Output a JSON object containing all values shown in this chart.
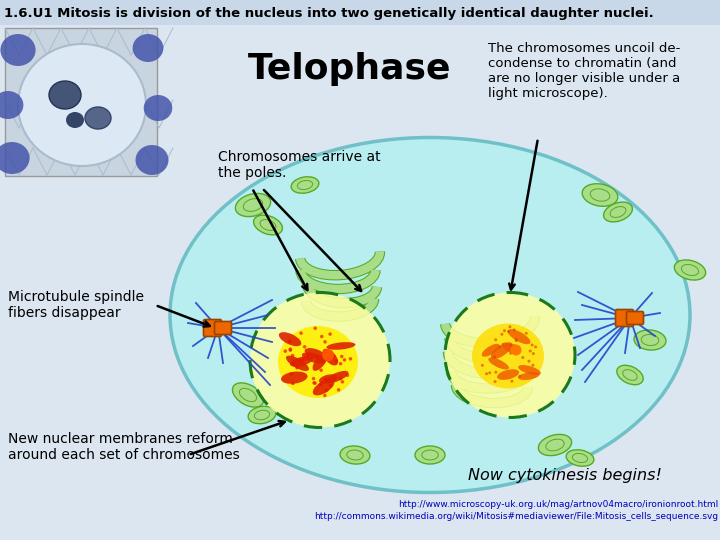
{
  "title": "1.6.U1 Mitosis is division of the nucleus into two genetically identical daughter nuclei.",
  "title_bg": "#c8d8e8",
  "main_bg": "#dce6f1",
  "stage_label": "Telophase",
  "label1_text": "Chromosomes arrive at\nthe poles.",
  "label2_text": "The chromosomes uncoil de-\ncondense to chromatin (and\nare no longer visible under a\nlight microscope).",
  "label3_text": "Microtubule spindle\nfibers disappear",
  "label4_text": "New nuclear membranes reform\naround each set of chromosomes",
  "label5_text": "Now cytokinesis begins!",
  "url1": "http://www.microscopy-uk.org.uk/mag/artnov04macro/ironionroot.html",
  "url2": "http://commons.wikimedia.org/wiki/Mitosis#mediaviewer/File:Mitosis_cells_sequence.svg",
  "cell_bg": "#b8eef0",
  "cell_border": "#70c0c8",
  "spindle_color": "#2244cc",
  "centriole_color": "#dd6600",
  "organelle_fill": "#aadd88",
  "organelle_edge": "#55aa22"
}
